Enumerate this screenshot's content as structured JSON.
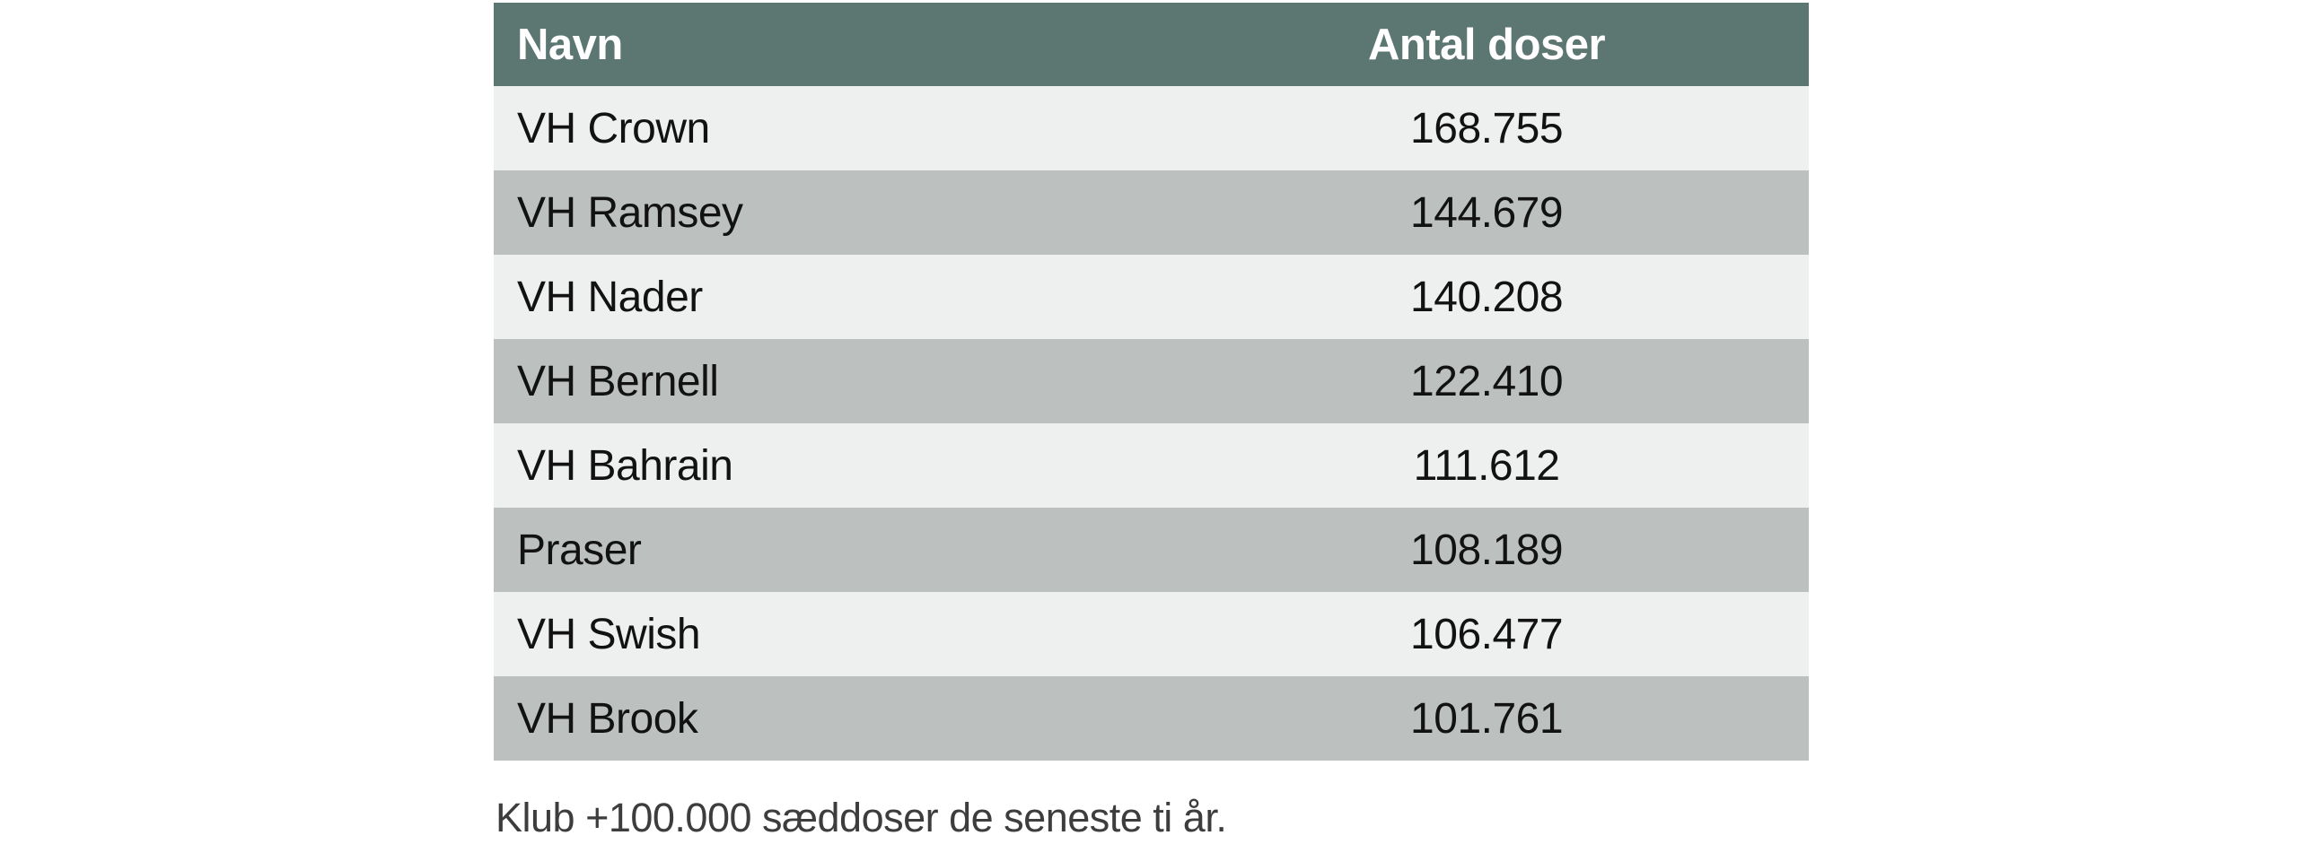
{
  "colors": {
    "header_bg": "#5c7772",
    "row_light": "#eef0ef",
    "row_dark": "#bcc1c0",
    "header_text": "#ffffff",
    "body_text": "#121212",
    "caption_text": "#3d3d3d"
  },
  "table": {
    "columns": {
      "name": "Navn",
      "doses": "Antal doser"
    },
    "rows": [
      {
        "name": "VH Crown",
        "doses": "168.755"
      },
      {
        "name": "VH Ramsey",
        "doses": "144.679"
      },
      {
        "name": "VH Nader",
        "doses": "140.208"
      },
      {
        "name": "VH Bernell",
        "doses": "122.410"
      },
      {
        "name": "VH Bahrain",
        "doses": "111.612"
      },
      {
        "name": "Praser",
        "doses": "108.189"
      },
      {
        "name": "VH Swish",
        "doses": "106.477"
      },
      {
        "name": "VH Brook",
        "doses": "101.761"
      }
    ]
  },
  "caption": "Klub +100.000 sæddoser de seneste ti år.",
  "chart_data": {
    "type": "table",
    "title": "",
    "columns": [
      "Navn",
      "Antal doser"
    ],
    "rows": [
      [
        "VH Crown",
        168755
      ],
      [
        "VH Ramsey",
        144679
      ],
      [
        "VH Nader",
        140208
      ],
      [
        "VH Bernell",
        122410
      ],
      [
        "VH Bahrain",
        111612
      ],
      [
        "Praser",
        108189
      ],
      [
        "VH Swish",
        106477
      ],
      [
        "VH Brook",
        101761
      ]
    ],
    "caption": "Klub +100.000 sæddoser de seneste ti år.",
    "notes": "Danish number formatting: period used as thousands separator; alternating light/dark gray zebra rows with slate-green header"
  }
}
